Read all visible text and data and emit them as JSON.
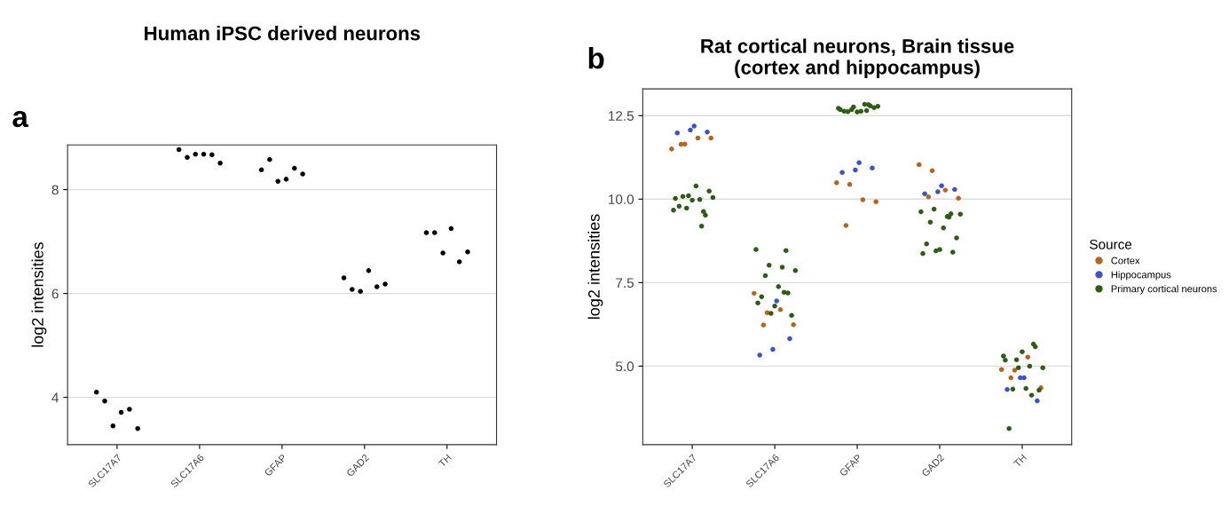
{
  "chart_data": [
    {
      "type": "scatter",
      "title": "Human iPSC derived neurons",
      "ylabel": "log2 intensities",
      "annotations": [
        "a"
      ],
      "marker": "circle",
      "grid": "y",
      "legend": false,
      "categories": [
        "SLC17A7",
        "SLC17A6",
        "GFAP",
        "GAD2",
        "TH"
      ],
      "ylim": [
        3.09,
        8.86
      ],
      "yticks": [
        4,
        6,
        8
      ],
      "series": [
        {
          "color": "#000000",
          "x": [
            "SLC17A7",
            "SLC17A7",
            "SLC17A7",
            "SLC17A7",
            "SLC17A7",
            "SLC17A7",
            "SLC17A6",
            "SLC17A6",
            "SLC17A6",
            "SLC17A6",
            "SLC17A6",
            "SLC17A6",
            "GFAP",
            "GFAP",
            "GFAP",
            "GFAP",
            "GFAP",
            "GFAP",
            "GAD2",
            "GAD2",
            "GAD2",
            "GAD2",
            "GAD2",
            "GAD2",
            "TH",
            "TH",
            "TH",
            "TH",
            "TH",
            "TH"
          ],
          "values": [
            4.1,
            3.93,
            3.45,
            3.71,
            3.77,
            3.4,
            8.77,
            8.62,
            8.68,
            8.68,
            8.67,
            8.51,
            8.38,
            8.58,
            8.16,
            8.2,
            8.41,
            8.3,
            6.3,
            6.08,
            6.04,
            6.44,
            6.13,
            6.18,
            7.17,
            7.17,
            6.78,
            7.25,
            6.61,
            6.8
          ]
        }
      ]
    },
    {
      "type": "scatter",
      "title": "Rat cortical neurons, Brain tissue\n(cortex and hippocampus)",
      "ylabel": "log2 intensities",
      "annotations": [
        "b"
      ],
      "marker": "circle",
      "grid": "y",
      "legend": "right",
      "legend_title": "Source",
      "categories": [
        "SLC17A7",
        "SLC17A6",
        "GFAP",
        "GAD2",
        "TH"
      ],
      "ylim": [
        2.65,
        13.3
      ],
      "yticks": [
        {
          "value": 5,
          "label": "5.0"
        },
        {
          "value": 7.5,
          "label": "7.5"
        },
        {
          "value": 10,
          "label": "10.0"
        },
        {
          "value": 12.5,
          "label": "12.5"
        }
      ],
      "series": [
        {
          "name": "Cortex",
          "color": "#b5651d",
          "x": [
            "SLC17A7",
            "SLC17A7",
            "SLC17A7",
            "SLC17A7",
            "SLC17A7",
            "SLC17A6",
            "SLC17A6",
            "SLC17A6",
            "SLC17A6",
            "SLC17A6",
            "GFAP",
            "GFAP",
            "GFAP",
            "GFAP",
            "GFAP",
            "GAD2",
            "GAD2",
            "GAD2",
            "GAD2",
            "GAD2",
            "TH",
            "TH",
            "TH",
            "TH",
            "TH"
          ],
          "values": [
            11.5,
            11.65,
            11.83,
            11.83,
            11.64,
            7.18,
            6.6,
            6.69,
            6.24,
            6.23,
            10.49,
            10.44,
            9.98,
            9.92,
            9.21,
            11.03,
            10.85,
            10.27,
            10.03,
            10.07,
            4.9,
            4.88,
            5.27,
            4.35,
            4.65
          ]
        },
        {
          "name": "Hippocampus",
          "color": "#3f51c8",
          "x": [
            "SLC17A7",
            "SLC17A7",
            "SLC17A7",
            "SLC17A7",
            "SLC17A6",
            "SLC17A6",
            "SLC17A6",
            "SLC17A6",
            "GFAP",
            "GFAP",
            "GFAP",
            "GFAP",
            "GAD2",
            "GAD2",
            "GAD2",
            "GAD2",
            "TH",
            "TH",
            "TH",
            "TH"
          ],
          "values": [
            12.19,
            12.01,
            11.98,
            12.07,
            6.95,
            5.82,
            5.33,
            5.5,
            11.09,
            10.93,
            10.8,
            10.87,
            10.4,
            10.29,
            10.16,
            10.22,
            4.65,
            3.96,
            4.3,
            4.65
          ]
        },
        {
          "name": "Primary cortical neurons",
          "color": "#2e5c16",
          "x": [
            "SLC17A7",
            "SLC17A7",
            "SLC17A7",
            "SLC17A7",
            "SLC17A7",
            "SLC17A7",
            "SLC17A7",
            "SLC17A7",
            "SLC17A7",
            "SLC17A7",
            "SLC17A7",
            "SLC17A7",
            "SLC17A7",
            "SLC17A7",
            "SLC17A6",
            "SLC17A6",
            "SLC17A6",
            "SLC17A6",
            "SLC17A6",
            "SLC17A6",
            "SLC17A6",
            "SLC17A6",
            "SLC17A6",
            "SLC17A6",
            "SLC17A6",
            "SLC17A6",
            "SLC17A6",
            "SLC17A6",
            "GFAP",
            "GFAP",
            "GFAP",
            "GFAP",
            "GFAP",
            "GFAP",
            "GFAP",
            "GFAP",
            "GFAP",
            "GFAP",
            "GFAP",
            "GFAP",
            "GFAP",
            "GFAP",
            "GAD2",
            "GAD2",
            "GAD2",
            "GAD2",
            "GAD2",
            "GAD2",
            "GAD2",
            "GAD2",
            "GAD2",
            "GAD2",
            "GAD2",
            "GAD2",
            "GAD2",
            "GAD2",
            "TH",
            "TH",
            "TH",
            "TH",
            "TH",
            "TH",
            "TH",
            "TH",
            "TH",
            "TH",
            "TH",
            "TH",
            "TH",
            "TH"
          ],
          "values": [
            9.63,
            9.67,
            9.73,
            9.99,
            10.05,
            10.08,
            10.39,
            10.24,
            9.79,
            9.97,
            9.52,
            10.02,
            10.1,
            9.19,
            8.46,
            8.49,
            8.02,
            7.96,
            7.86,
            7.71,
            7.38,
            6.52,
            7.08,
            6.8,
            7.19,
            6.89,
            6.58,
            7.21,
            12.83,
            12.72,
            12.68,
            12.84,
            12.78,
            12.62,
            12.63,
            12.74,
            12.63,
            12.61,
            12.79,
            12.68,
            12.76,
            12.65,
            9.56,
            9.62,
            9.7,
            9.48,
            9.55,
            9.31,
            9.14,
            8.84,
            8.66,
            8.49,
            8.41,
            8.37,
            8.45,
            9.46,
            5.66,
            5.3,
            5.19,
            5.0,
            4.95,
            4.31,
            4.33,
            4.28,
            3.13,
            5.43,
            5.58,
            5.18,
            4.95,
            4.13
          ]
        }
      ]
    }
  ]
}
